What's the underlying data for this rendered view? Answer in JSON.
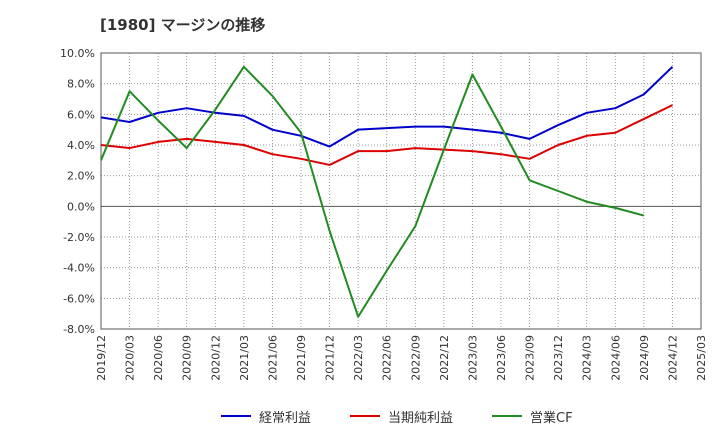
{
  "chart_data": {
    "type": "line",
    "title": "[1980]  マージンの推移",
    "xlabel": "",
    "ylabel": "",
    "ylim": [
      -8.0,
      10.0
    ],
    "yticks": [
      "10.0%",
      "8.0%",
      "6.0%",
      "4.0%",
      "2.0%",
      "0.0%",
      "-2.0%",
      "-4.0%",
      "-6.0%",
      "-8.0%"
    ],
    "grid": true,
    "legend_position": "bottom",
    "categories": [
      "2019/12",
      "2020/03",
      "2020/06",
      "2020/09",
      "2020/12",
      "2021/03",
      "2021/06",
      "2021/09",
      "2021/12",
      "2022/03",
      "2022/06",
      "2022/09",
      "2022/12",
      "2023/03",
      "2023/06",
      "2023/09",
      "2023/12",
      "2024/03",
      "2024/06",
      "2024/09",
      "2024/12",
      "2025/03"
    ],
    "series": [
      {
        "name": "経常利益",
        "color": "#0000cc",
        "values": [
          5.8,
          5.5,
          6.1,
          6.4,
          6.1,
          5.9,
          5.0,
          4.6,
          3.9,
          5.0,
          5.1,
          5.2,
          5.2,
          5.0,
          4.8,
          4.4,
          5.3,
          6.1,
          6.4,
          7.3,
          9.1,
          null
        ]
      },
      {
        "name": "当期純利益",
        "color": "#dd0000",
        "values": [
          4.0,
          3.8,
          4.2,
          4.4,
          4.2,
          4.0,
          3.4,
          3.1,
          2.7,
          3.6,
          3.6,
          3.8,
          3.7,
          3.6,
          3.4,
          3.1,
          4.0,
          4.6,
          4.8,
          5.7,
          6.6,
          null
        ]
      },
      {
        "name": "営業CF",
        "color": "#228b22",
        "values": [
          3.0,
          7.5,
          5.6,
          3.8,
          6.3,
          9.1,
          7.2,
          4.8,
          -1.6,
          -7.2,
          -4.2,
          -1.3,
          3.7,
          8.6,
          5.2,
          1.7,
          1.0,
          0.3,
          -0.1,
          -0.6,
          null,
          null
        ]
      }
    ]
  }
}
